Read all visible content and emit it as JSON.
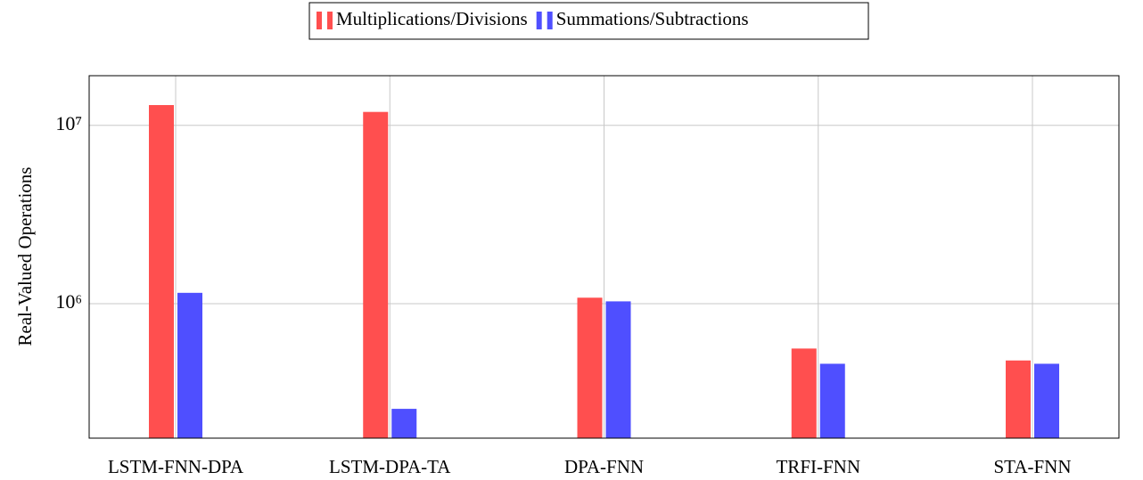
{
  "chart_data": {
    "type": "bar",
    "log_y": true,
    "grid": true,
    "ylabel": "Real-Valued Operations",
    "categories": [
      "LSTM-FNN-DPA",
      "LSTM-DPA-TA",
      "DPA-FNN",
      "TRFI-FNN",
      "STA-FNN"
    ],
    "series": [
      {
        "name": "Multiplications/Divisions",
        "color": "#ff4f4f",
        "values": [
          13000000,
          11900000,
          1080000,
          560000,
          480000
        ]
      },
      {
        "name": "Summations/Subtractions",
        "color": "#4f4fff",
        "values": [
          1150000,
          257000,
          1030000,
          460000,
          460000
        ]
      }
    ],
    "ylim": [
      176000,
      19000000
    ],
    "yticks": [
      {
        "value": 1000000,
        "label": "10⁶"
      },
      {
        "value": 10000000,
        "label": "10⁷"
      }
    ]
  }
}
